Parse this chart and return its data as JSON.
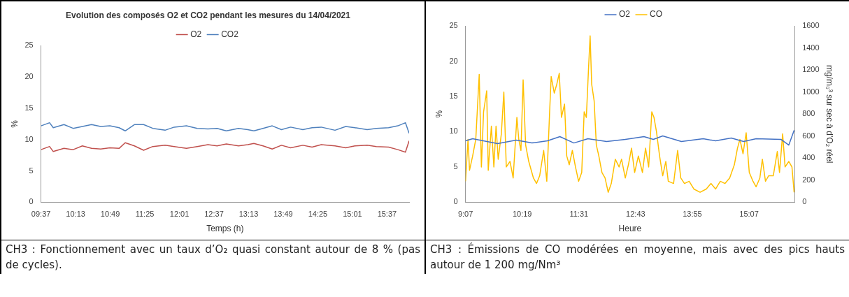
{
  "chart_data": [
    {
      "type": "line",
      "title": "Evolution des composés O2 et CO2 pendant les mesures du 14/04/2021",
      "xlabel": "Temps (h)",
      "ylabel": "%",
      "x": [
        9.617,
        9.765,
        9.829,
        10.015,
        10.174,
        10.334,
        10.493,
        10.652,
        10.811,
        10.971,
        11.077,
        11.236,
        11.396,
        11.555,
        11.768,
        11.927,
        12.139,
        12.325,
        12.511,
        12.67,
        12.83,
        13.042,
        13.201,
        13.308,
        13.467,
        13.626,
        13.786,
        13.945,
        14.157,
        14.317,
        14.476,
        14.715,
        14.901,
        15.06,
        15.273,
        15.432,
        15.644,
        15.804,
        15.936,
        16.0
      ],
      "series": [
        {
          "name": "O2",
          "color": "#c0504d",
          "values": [
            8.4,
            8.9,
            8.1,
            8.6,
            8.4,
            9.0,
            8.6,
            8.5,
            8.7,
            8.6,
            9.5,
            9.0,
            8.3,
            8.9,
            9.1,
            8.9,
            8.6,
            8.9,
            9.2,
            9.0,
            9.3,
            9.0,
            9.2,
            9.4,
            9.0,
            8.5,
            9.1,
            8.7,
            9.1,
            8.8,
            9.2,
            9.0,
            8.7,
            9.0,
            9.1,
            8.9,
            8.8,
            8.4,
            8.0,
            9.8
          ]
        },
        {
          "name": "CO2",
          "color": "#4f81bd",
          "values": [
            12.2,
            12.7,
            11.9,
            12.4,
            11.8,
            12.1,
            12.4,
            12.1,
            12.2,
            11.9,
            11.4,
            12.4,
            12.4,
            11.8,
            11.5,
            12.0,
            12.2,
            11.8,
            11.7,
            11.8,
            11.4,
            11.8,
            11.6,
            11.4,
            11.8,
            12.2,
            11.6,
            12.0,
            11.6,
            11.9,
            12.0,
            11.5,
            12.1,
            11.9,
            11.6,
            11.8,
            11.9,
            12.2,
            12.7,
            11.0
          ]
        }
      ],
      "xlim": [
        9.6167,
        16.0
      ],
      "xticks": [
        {
          "value": 9.6167,
          "label": "09:37"
        },
        {
          "value": 10.2167,
          "label": "10:13"
        },
        {
          "value": 10.8167,
          "label": "10:49"
        },
        {
          "value": 11.4167,
          "label": "11:25"
        },
        {
          "value": 12.0167,
          "label": "12:01"
        },
        {
          "value": 12.6167,
          "label": "12:37"
        },
        {
          "value": 13.2167,
          "label": "13:13"
        },
        {
          "value": 13.8167,
          "label": "13:49"
        },
        {
          "value": 14.4167,
          "label": "14:25"
        },
        {
          "value": 15.0167,
          "label": "15:01"
        },
        {
          "value": 15.6167,
          "label": "15:37"
        }
      ],
      "ylim": [
        0,
        25
      ],
      "yticks": [
        0,
        5,
        10,
        15,
        20,
        25
      ],
      "grid": false,
      "legend": "top",
      "marker": "none",
      "line_style": "solid",
      "annotations": [
        "CH3 : Fonctionnement avec un taux d’O₂ quasi constant autour de 8 % (pas de cycles)."
      ]
    },
    {
      "type": "line",
      "xlabel": "Heure",
      "ylabel": "%",
      "y2label": "mg/m₀³ sur sec à d'O₂ réel",
      "series": [
        {
          "name": "O2",
          "color": "#4472c4",
          "x": [
            9.117,
            9.268,
            9.796,
            10.191,
            10.521,
            10.851,
            11.114,
            11.411,
            11.707,
            12.103,
            12.498,
            12.894,
            13.092,
            13.29,
            13.685,
            14.147,
            14.41,
            14.74,
            15.003,
            15.267,
            15.795,
            15.959,
            16.071
          ],
          "values": [
            8.7,
            9.0,
            8.3,
            8.8,
            8.4,
            8.7,
            9.3,
            8.4,
            9.0,
            8.6,
            8.9,
            9.3,
            8.9,
            9.4,
            8.6,
            9.0,
            8.7,
            9.1,
            8.6,
            9.0,
            8.9,
            8.1,
            10.2
          ]
        },
        {
          "name": "CO",
          "color": "#ffc000",
          "axis": "y2",
          "x": [
            9.117,
            9.17,
            9.202,
            9.268,
            9.334,
            9.407,
            9.453,
            9.499,
            9.565,
            9.598,
            9.664,
            9.717,
            9.763,
            9.809,
            9.875,
            9.928,
            9.98,
            10.059,
            10.125,
            10.204,
            10.244,
            10.29,
            10.336,
            10.389,
            10.455,
            10.554,
            10.62,
            10.686,
            10.771,
            10.837,
            10.897,
            10.93,
            10.995,
            11.048,
            11.101,
            11.147,
            11.213,
            11.259,
            11.312,
            11.378,
            11.444,
            11.51,
            11.576,
            11.628,
            11.674,
            11.721,
            11.754,
            11.787,
            11.839,
            11.885,
            11.938,
            12.004,
            12.07,
            12.136,
            12.202,
            12.287,
            12.367,
            12.419,
            12.498,
            12.564,
            12.63,
            12.696,
            12.775,
            12.861,
            12.927,
            12.993,
            13.059,
            13.105,
            13.158,
            13.224,
            13.29,
            13.356,
            13.408,
            13.52,
            13.606,
            13.672,
            13.751,
            13.85,
            13.949,
            14.081,
            14.212,
            14.311,
            14.41,
            14.509,
            14.608,
            14.707,
            14.806,
            14.872,
            14.924,
            14.99,
            15.056,
            15.122,
            15.201,
            15.267,
            15.346,
            15.399,
            15.465,
            15.531,
            15.63,
            15.715,
            15.762,
            15.828,
            15.88,
            15.959,
            16.025,
            16.071
          ],
          "values": [
            190,
            570,
            290,
            420,
            570,
            1160,
            320,
            820,
            1010,
            290,
            690,
            320,
            690,
            390,
            620,
            1000,
            320,
            370,
            220,
            770,
            570,
            470,
            1110,
            520,
            370,
            220,
            170,
            240,
            470,
            190,
            820,
            1140,
            990,
            1070,
            1170,
            770,
            890,
            420,
            340,
            470,
            320,
            190,
            270,
            820,
            770,
            1220,
            1510,
            1070,
            920,
            520,
            420,
            270,
            220,
            90,
            170,
            390,
            320,
            390,
            220,
            340,
            490,
            270,
            420,
            270,
            490,
            320,
            820,
            770,
            640,
            420,
            240,
            370,
            190,
            170,
            470,
            220,
            170,
            190,
            120,
            90,
            120,
            170,
            120,
            190,
            170,
            220,
            340,
            490,
            570,
            440,
            630,
            270,
            190,
            140,
            220,
            390,
            190,
            240,
            240,
            460,
            270,
            620,
            320,
            370,
            320,
            90
          ]
        }
      ],
      "xlim": [
        9.1167,
        16.08
      ],
      "xticks": [
        {
          "value": 9.1167,
          "label": "9:07"
        },
        {
          "value": 10.3167,
          "label": "10:19"
        },
        {
          "value": 11.5167,
          "label": "11:31"
        },
        {
          "value": 12.7167,
          "label": "12:43"
        },
        {
          "value": 13.9167,
          "label": "13:55"
        },
        {
          "value": 15.1167,
          "label": "15:07"
        }
      ],
      "ylim": [
        0,
        25
      ],
      "yticks": [
        0,
        5,
        10,
        15,
        20,
        25
      ],
      "y2lim": [
        0,
        1600
      ],
      "y2ticks": [
        0,
        200,
        400,
        600,
        800,
        1000,
        1200,
        1400,
        1600
      ],
      "grid": false,
      "legend": "top",
      "marker": "none",
      "line_style": "solid",
      "annotations": [
        "CH3 : Émissions de CO modérées en moyenne, mais avec des pics hauts autour de 1 200 mg/Nm³"
      ]
    }
  ]
}
